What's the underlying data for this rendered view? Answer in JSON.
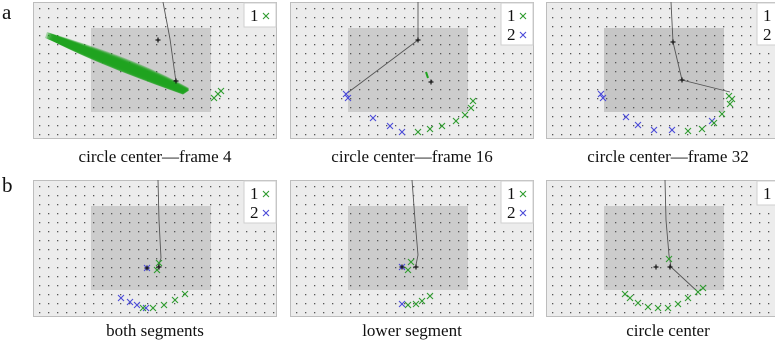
{
  "figure": {
    "row_labels": [
      "a",
      "b"
    ],
    "colors": {
      "series1": "#2e9b2e",
      "series2": "#4a4ad8",
      "blob": "#1fa31f",
      "field_bg": "#ececec",
      "roi": "#c9c9c9",
      "dots": "#555555",
      "track": "#555555"
    },
    "panels": [
      {
        "caption": "circle center—frame 4",
        "legend": [
          {
            "label": "1",
            "marker": "×",
            "color": "#2e9b2e"
          }
        ],
        "blob": true,
        "roi_dark": false,
        "line": [
          [
            130,
            0
          ],
          [
            137,
            37
          ],
          [
            143,
            80
          ]
        ],
        "centers": [
          [
            125,
            38
          ],
          [
            143,
            79
          ]
        ],
        "s1": [
          [
            181,
            96
          ],
          [
            185,
            92
          ],
          [
            188,
            89
          ]
        ],
        "s2": []
      },
      {
        "caption": "circle center—frame 16",
        "legend": [
          {
            "label": "1",
            "marker": "×",
            "color": "#2e9b2e"
          },
          {
            "label": "2",
            "marker": "×",
            "color": "#4a4ad8"
          }
        ],
        "blob": false,
        "roi_dark": false,
        "line": [
          [
            128,
            0
          ],
          [
            128,
            38
          ],
          [
            56,
            92
          ]
        ],
        "centers": [
          [
            128,
            38
          ],
          [
            141,
            80
          ]
        ],
        "s1": [
          [
            128,
            130
          ],
          [
            140,
            127
          ],
          [
            152,
            124
          ],
          [
            166,
            119
          ],
          [
            175,
            113
          ],
          [
            181,
            106
          ],
          [
            183,
            99
          ]
        ],
        "s2": [
          [
            56,
            92
          ],
          [
            58,
            96
          ],
          [
            83,
            116
          ],
          [
            100,
            124
          ],
          [
            112,
            130
          ]
        ],
        "blob_small": [
          [
            136,
            70
          ],
          [
            138,
            76
          ]
        ]
      },
      {
        "caption": "circle center—frame 32",
        "legend": [
          {
            "label": "1",
            "marker": "×",
            "color": "#2e9b2e"
          },
          {
            "label": "2",
            "marker": "×",
            "color": "#4a4ad8"
          }
        ],
        "blob": false,
        "roi_dark": true,
        "line": [
          [
            125,
            0
          ],
          [
            127,
            40
          ],
          [
            136,
            78
          ],
          [
            184,
            90
          ]
        ],
        "centers": [
          [
            127,
            40
          ],
          [
            136,
            78
          ]
        ],
        "s1": [
          [
            183,
            94
          ],
          [
            186,
            97
          ],
          [
            184,
            102
          ],
          [
            176,
            112
          ],
          [
            168,
            121
          ],
          [
            156,
            127
          ],
          [
            142,
            129
          ]
        ],
        "s2": [
          [
            55,
            92
          ],
          [
            57,
            96
          ],
          [
            80,
            115
          ],
          [
            92,
            123
          ],
          [
            108,
            128
          ],
          [
            126,
            128
          ],
          [
            166,
            119
          ]
        ]
      },
      {
        "caption": "both segments",
        "legend": [
          {
            "label": "1",
            "marker": "×",
            "color": "#2e9b2e"
          },
          {
            "label": "2",
            "marker": "×",
            "color": "#4a4ad8"
          }
        ],
        "blob": false,
        "roi_dark": false,
        "line": [
          [
            125,
            0
          ],
          [
            126,
            40
          ],
          [
            128,
            78
          ],
          [
            125,
            87
          ]
        ],
        "centers": [
          [
            114,
            88
          ],
          [
            126,
            87
          ]
        ],
        "s1": [
          [
            126,
            83
          ],
          [
            124,
            90
          ],
          [
            110,
            128
          ],
          [
            120,
            128
          ],
          [
            131,
            125
          ],
          [
            142,
            120
          ],
          [
            152,
            114
          ]
        ],
        "s2": [
          [
            88,
            118
          ],
          [
            97,
            122
          ],
          [
            104,
            125
          ],
          [
            113,
            128
          ],
          [
            114,
            88
          ]
        ]
      },
      {
        "caption": "lower segment",
        "legend": [
          {
            "label": "1",
            "marker": "×",
            "color": "#2e9b2e"
          },
          {
            "label": "2",
            "marker": "×",
            "color": "#4a4ad8"
          }
        ],
        "blob": false,
        "roi_dark": false,
        "line": [
          [
            122,
            0
          ],
          [
            125,
            40
          ],
          [
            128,
            75
          ],
          [
            126,
            85
          ]
        ],
        "centers": [
          [
            112,
            87
          ],
          [
            126,
            87
          ]
        ],
        "s1": [
          [
            121,
            82
          ],
          [
            118,
            90
          ],
          [
            118,
            125
          ],
          [
            126,
            124
          ],
          [
            132,
            121
          ],
          [
            140,
            116
          ]
        ],
        "s2": [
          [
            112,
            87
          ],
          [
            112,
            124
          ]
        ]
      },
      {
        "caption": "circle center",
        "legend": [
          {
            "label": "1",
            "marker": "×",
            "color": "#2e9b2e"
          }
        ],
        "blob": false,
        "roi_dark": false,
        "line": [
          [
            119,
            0
          ],
          [
            120,
            40
          ],
          [
            123,
            75
          ],
          [
            125,
            87
          ],
          [
            152,
            112
          ]
        ],
        "centers": [
          [
            110,
            87
          ],
          [
            124,
            87
          ]
        ],
        "s1": [
          [
            123,
            79
          ],
          [
            79,
            114
          ],
          [
            84,
            118
          ],
          [
            92,
            123
          ],
          [
            102,
            127
          ],
          [
            112,
            128
          ],
          [
            122,
            128
          ],
          [
            132,
            124
          ],
          [
            142,
            118
          ],
          [
            152,
            112
          ],
          [
            157,
            108
          ]
        ],
        "s2": []
      }
    ]
  }
}
